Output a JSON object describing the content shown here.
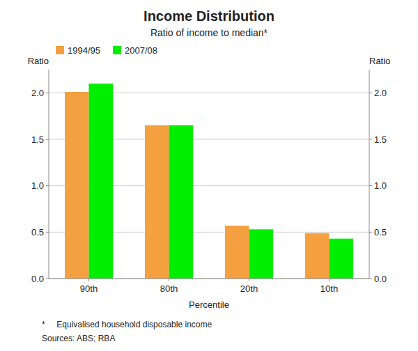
{
  "chart_data": {
    "type": "bar",
    "title": "Income Distribution",
    "subtitle": "Ratio of income to median*",
    "x_label": "Percentile",
    "y_label": "Ratio",
    "y2_label": "Ratio",
    "categories": [
      "90th",
      "80th",
      "20th",
      "10th"
    ],
    "series": [
      {
        "name": "1994/95",
        "color": "#F5A040",
        "values": [
          2.01,
          1.65,
          0.57,
          0.49
        ]
      },
      {
        "name": "2007/08",
        "color": "#00EE00",
        "values": [
          2.1,
          1.65,
          0.53,
          0.43
        ]
      }
    ],
    "ylim": [
      0.0,
      2.25
    ],
    "yticks": [
      {
        "value": 0.0,
        "label": "0.0"
      },
      {
        "value": 0.5,
        "label": "0.5"
      },
      {
        "value": 1.0,
        "label": "1.0"
      },
      {
        "value": 1.5,
        "label": "1.5"
      },
      {
        "value": 2.0,
        "label": "2.0"
      }
    ],
    "y2lim": [
      0.0,
      2.25
    ],
    "y2ticks": [
      {
        "value": 0.0,
        "label": "0.0"
      },
      {
        "value": 0.5,
        "label": "0.5"
      },
      {
        "value": 1.0,
        "label": "1.0"
      },
      {
        "value": 1.5,
        "label": "1.5"
      },
      {
        "value": 2.0,
        "label": "2.0"
      }
    ],
    "grid": true,
    "legend": "upper left",
    "footnotes": [
      "*     Equivalised household disposable income",
      "Sources: ABS; RBA"
    ]
  }
}
